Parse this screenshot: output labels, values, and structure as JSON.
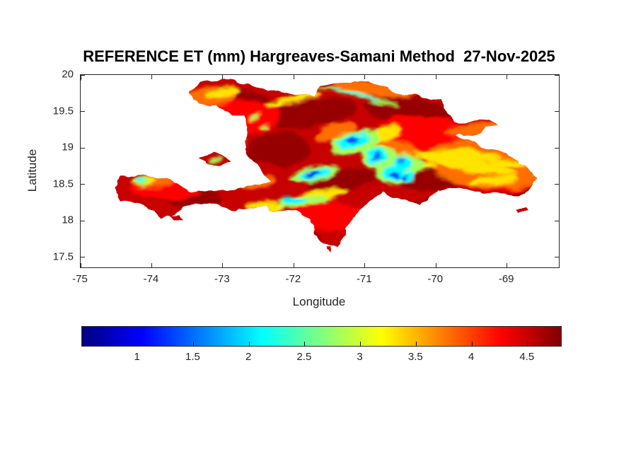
{
  "figure": {
    "title": "REFERENCE ET (mm) Hargreaves-Samani Method  27-Nov-2025",
    "xlabel": "Longitude",
    "ylabel": "Latitude",
    "background_color": "#ffffff",
    "axis_text_color": "#262626"
  },
  "chart_data": {
    "type": "heatmap",
    "title": "REFERENCE ET (mm) Hargreaves-Samani Method  27-Nov-2025",
    "xlabel": "Longitude",
    "ylabel": "Latitude",
    "region": "Island of Hispaniola (Haiti and Dominican Republic) with Gonave, Ile-a-Vache, Beata and Saona islets",
    "units": "mm",
    "grid": false,
    "xlim": [
      -75,
      -68.27
    ],
    "ylim": [
      17.36,
      20
    ],
    "xticks": {
      "values": [
        -75,
        -74,
        -73,
        -72,
        -71,
        -70,
        -69
      ],
      "labels": [
        "-75",
        "-74",
        "-73",
        "-72",
        "-71",
        "-70",
        "-69"
      ]
    },
    "yticks": {
      "values": [
        20,
        19.5,
        19,
        18.5,
        18,
        17.5
      ],
      "labels": [
        "20",
        "19.5",
        "19",
        "18.5",
        "18",
        "17.5"
      ]
    },
    "colorbar": {
      "orientation": "horizontal",
      "colormap": "jet",
      "range": [
        0.5,
        4.8
      ],
      "tick_values": [
        1,
        1.5,
        2,
        2.5,
        3,
        3.5,
        4,
        4.5
      ],
      "tick_labels": [
        "1",
        "1.5",
        "2",
        "2.5",
        "3",
        "3.5",
        "4",
        "4.5"
      ],
      "colormap_stops": [
        [
          "0",
          "#000080"
        ],
        [
          "0.125",
          "#0000ff"
        ],
        [
          "0.375",
          "#00ffff"
        ],
        [
          "0.625",
          "#ffff00"
        ],
        [
          "0.875",
          "#ff0000"
        ],
        [
          "1",
          "#800000"
        ]
      ]
    },
    "value_summary": {
      "dominant_value_mm": "4.2-4.8 over most lowland/coastal areas (red to dark red)",
      "low_value_regions_mm": "0.9-2.2 over Cordillera Central and Massif de la Selle mountains (cyan/blue patches)",
      "intermediate_mm": "2.8-3.8 yellow-orange streaks across eastern plains and north coast"
    },
    "coastlines": {
      "hispaniola": [
        [
          -73.46,
          19.78
        ],
        [
          -73.3,
          19.9
        ],
        [
          -72.95,
          19.93
        ],
        [
          -72.6,
          19.85
        ],
        [
          -72.2,
          19.77
        ],
        [
          -71.95,
          19.72
        ],
        [
          -71.75,
          19.7
        ],
        [
          -71.63,
          19.88
        ],
        [
          -71.3,
          19.87
        ],
        [
          -70.95,
          19.92
        ],
        [
          -70.6,
          19.78
        ],
        [
          -70.2,
          19.68
        ],
        [
          -69.93,
          19.67
        ],
        [
          -69.85,
          19.45
        ],
        [
          -69.73,
          19.35
        ],
        [
          -69.55,
          19.33
        ],
        [
          -69.25,
          19.38
        ],
        [
          -69.15,
          19.3
        ],
        [
          -69.33,
          19.22
        ],
        [
          -69.62,
          19.18
        ],
        [
          -69.7,
          19.15
        ],
        [
          -69.45,
          19.05
        ],
        [
          -69.1,
          18.95
        ],
        [
          -68.85,
          18.85
        ],
        [
          -68.7,
          18.72
        ],
        [
          -68.6,
          18.6
        ],
        [
          -68.68,
          18.42
        ],
        [
          -68.85,
          18.35
        ],
        [
          -69.1,
          18.38
        ],
        [
          -69.35,
          18.4
        ],
        [
          -69.75,
          18.45
        ],
        [
          -70.0,
          18.42
        ],
        [
          -70.2,
          18.22
        ],
        [
          -70.5,
          18.3
        ],
        [
          -70.75,
          18.4
        ],
        [
          -70.95,
          18.25
        ],
        [
          -71.08,
          18.1
        ],
        [
          -71.25,
          17.9
        ],
        [
          -71.4,
          17.62
        ],
        [
          -71.58,
          17.7
        ],
        [
          -71.7,
          17.85
        ],
        [
          -71.75,
          18.03
        ],
        [
          -72.0,
          18.12
        ],
        [
          -72.4,
          18.2
        ],
        [
          -72.8,
          18.15
        ],
        [
          -73.1,
          18.23
        ],
        [
          -73.5,
          18.2
        ],
        [
          -73.85,
          18.02
        ],
        [
          -74.1,
          18.22
        ],
        [
          -74.43,
          18.28
        ],
        [
          -74.48,
          18.45
        ],
        [
          -74.42,
          18.62
        ],
        [
          -74.1,
          18.62
        ],
        [
          -73.75,
          18.55
        ],
        [
          -73.45,
          18.42
        ],
        [
          -73.1,
          18.4
        ],
        [
          -72.8,
          18.43
        ],
        [
          -72.55,
          18.5
        ],
        [
          -72.35,
          18.53
        ],
        [
          -72.5,
          18.75
        ],
        [
          -72.7,
          19.0
        ],
        [
          -72.65,
          19.3
        ],
        [
          -72.7,
          19.45
        ],
        [
          -72.85,
          19.45
        ],
        [
          -73.1,
          19.6
        ],
        [
          -73.3,
          19.63
        ],
        [
          -73.42,
          19.68
        ]
      ],
      "gonave": [
        [
          -73.35,
          18.87
        ],
        [
          -73.1,
          18.95
        ],
        [
          -72.88,
          18.8
        ],
        [
          -73.05,
          18.75
        ],
        [
          -73.25,
          18.78
        ]
      ],
      "ile_a_vache": [
        [
          -73.75,
          18.08
        ],
        [
          -73.6,
          18.1
        ],
        [
          -73.55,
          18.05
        ],
        [
          -73.7,
          18.03
        ]
      ],
      "beata": [
        [
          -71.55,
          17.64
        ],
        [
          -71.49,
          17.64
        ],
        [
          -71.5,
          17.58
        ],
        [
          -71.56,
          17.6
        ]
      ],
      "saona": [
        [
          -68.88,
          18.15
        ],
        [
          -68.73,
          18.17
        ],
        [
          -68.7,
          18.11
        ],
        [
          -68.85,
          18.1
        ]
      ]
    },
    "base_value_mm": 4.5,
    "features_format": [
      "lon_center",
      "lat_center",
      "rx_deg",
      "ry_deg",
      "rotation_deg",
      "value_mm"
    ],
    "features": [
      [
        -72.61,
        19.61,
        0.5,
        0.17,
        20,
        4.7
      ],
      [
        -71.72,
        19.47,
        0.6,
        0.19,
        -10,
        4.7
      ],
      [
        -70.32,
        19.47,
        0.7,
        0.21,
        10,
        4.7
      ],
      [
        -72.21,
        18.98,
        0.45,
        0.24,
        0,
        4.7
      ],
      [
        -69.83,
        18.16,
        0.6,
        0.17,
        0,
        4.7
      ],
      [
        -68.83,
        18.45,
        0.4,
        0.14,
        0,
        4.7
      ],
      [
        -73.41,
        18.3,
        0.4,
        0.12,
        0,
        4.7
      ],
      [
        -72.01,
        17.77,
        0.4,
        0.24,
        0,
        4.7
      ],
      [
        -68.75,
        18.83,
        0.3,
        0.12,
        0,
        4.7
      ],
      [
        -71.3,
        18.55,
        0.5,
        0.15,
        -10,
        4.7
      ],
      [
        -70.1,
        18.6,
        0.45,
        0.2,
        0,
        4.7
      ],
      [
        -70.03,
        19.13,
        0.8,
        0.29,
        10,
        4.25
      ],
      [
        -69.03,
        18.64,
        0.6,
        0.24,
        0,
        4.25
      ],
      [
        -72.81,
        19.42,
        0.6,
        0.24,
        0,
        4.25
      ],
      [
        -73.81,
        18.45,
        0.5,
        0.15,
        0,
        4.25
      ],
      [
        -71.52,
        18.06,
        0.6,
        0.19,
        0,
        4.25
      ],
      [
        -68.9,
        19.0,
        0.5,
        0.3,
        0,
        4.25
      ],
      [
        -73.21,
        19.71,
        0.4,
        0.12,
        -5,
        3.8
      ],
      [
        -70.82,
        19.81,
        0.6,
        0.1,
        5,
        3.8
      ],
      [
        -69.43,
        18.83,
        0.7,
        0.29,
        0,
        3.8
      ],
      [
        -68.83,
        18.64,
        0.5,
        0.19,
        0,
        3.8
      ],
      [
        -74.0,
        18.54,
        0.3,
        0.08,
        0,
        3.8
      ],
      [
        -72.61,
        18.54,
        0.35,
        0.1,
        0,
        3.8
      ],
      [
        -71.42,
        19.22,
        0.3,
        0.1,
        -20,
        3.8
      ],
      [
        -69.4,
        19.25,
        0.45,
        0.08,
        -5,
        3.8
      ],
      [
        -70.6,
        19.0,
        0.4,
        0.12,
        15,
        3.8
      ],
      [
        -69.3,
        18.7,
        0.6,
        0.25,
        0,
        3.8
      ],
      [
        -73.01,
        19.76,
        0.25,
        0.06,
        -10,
        3.3
      ],
      [
        -72.01,
        19.66,
        0.4,
        0.05,
        -15,
        3.3
      ],
      [
        -69.43,
        18.74,
        0.45,
        0.08,
        5,
        3.3
      ],
      [
        -68.93,
        18.79,
        0.35,
        0.05,
        0,
        3.3
      ],
      [
        -74.1,
        18.54,
        0.18,
        0.06,
        0,
        3.3
      ],
      [
        -72.41,
        18.2,
        0.3,
        0.06,
        0,
        3.3
      ],
      [
        -70.77,
        19.18,
        0.28,
        0.09,
        -20,
        3.3
      ],
      [
        -71.62,
        18.35,
        0.4,
        0.07,
        -5,
        3.3
      ],
      [
        -69.15,
        18.7,
        0.3,
        0.05,
        10,
        3.3
      ],
      [
        -70.3,
        18.75,
        0.3,
        0.06,
        0,
        3.3
      ],
      [
        -72.9,
        19.2,
        0.25,
        0.06,
        30,
        3.3
      ],
      [
        -69.6,
        18.9,
        0.5,
        0.07,
        5,
        3.3
      ],
      [
        -69.2,
        18.55,
        0.35,
        0.06,
        -5,
        3.3
      ],
      [
        -69.9,
        18.85,
        0.4,
        0.08,
        10,
        3.3
      ],
      [
        -71.12,
        19.08,
        0.34,
        0.16,
        -15,
        2.8
      ],
      [
        -70.82,
        18.88,
        0.26,
        0.14,
        0,
        2.8
      ],
      [
        -70.62,
        18.67,
        0.24,
        0.18,
        0,
        2.8
      ],
      [
        -71.72,
        18.64,
        0.34,
        0.1,
        -12,
        2.8
      ],
      [
        -71.87,
        18.27,
        0.36,
        0.08,
        -5,
        2.8
      ],
      [
        -74.15,
        18.54,
        0.13,
        0.06,
        0,
        2.8
      ],
      [
        -71.12,
        19.72,
        0.6,
        0.03,
        13,
        2.8
      ],
      [
        -70.47,
        18.76,
        0.3,
        0.14,
        0,
        2.8
      ],
      [
        -73.11,
        18.83,
        0.11,
        0.035,
        -15,
        2.8
      ],
      [
        -72.56,
        19.42,
        0.07,
        0.03,
        -20,
        2.8
      ],
      [
        -72.39,
        19.3,
        0.06,
        0.025,
        -20,
        2.8
      ],
      [
        -71.14,
        19.1,
        0.22,
        0.1,
        -15,
        2.1
      ],
      [
        -70.84,
        18.89,
        0.16,
        0.09,
        0,
        2.1
      ],
      [
        -70.61,
        18.66,
        0.15,
        0.12,
        0,
        2.1
      ],
      [
        -71.7,
        18.64,
        0.22,
        0.06,
        -12,
        2.1
      ],
      [
        -70.47,
        18.79,
        0.12,
        0.08,
        0,
        2.1
      ],
      [
        -70.4,
        18.62,
        0.1,
        0.07,
        0,
        2.1
      ],
      [
        -72.0,
        18.3,
        0.13,
        0.04,
        -5,
        2.1
      ],
      [
        -74.16,
        18.55,
        0.06,
        0.03,
        0,
        2.1
      ],
      [
        -71.12,
        19.72,
        0.35,
        0.015,
        13,
        2.1
      ],
      [
        -71.95,
        18.27,
        0.15,
        0.035,
        -5,
        2.1
      ],
      [
        -71.16,
        19.11,
        0.09,
        0.05,
        -15,
        1.3
      ],
      [
        -70.82,
        18.87,
        0.06,
        0.04,
        0,
        1.3
      ],
      [
        -70.58,
        18.63,
        0.07,
        0.05,
        0,
        1.3
      ],
      [
        -70.44,
        18.61,
        0.05,
        0.04,
        0,
        1.3
      ],
      [
        -70.5,
        18.83,
        0.04,
        0.03,
        0,
        1.3
      ],
      [
        -71.74,
        18.64,
        0.12,
        0.035,
        -12,
        0.9
      ]
    ],
    "annotations": [
      {
        "type": "stray-data-pixel",
        "lon": -74.98,
        "lat": 19.95,
        "color": "#c82020"
      }
    ]
  }
}
